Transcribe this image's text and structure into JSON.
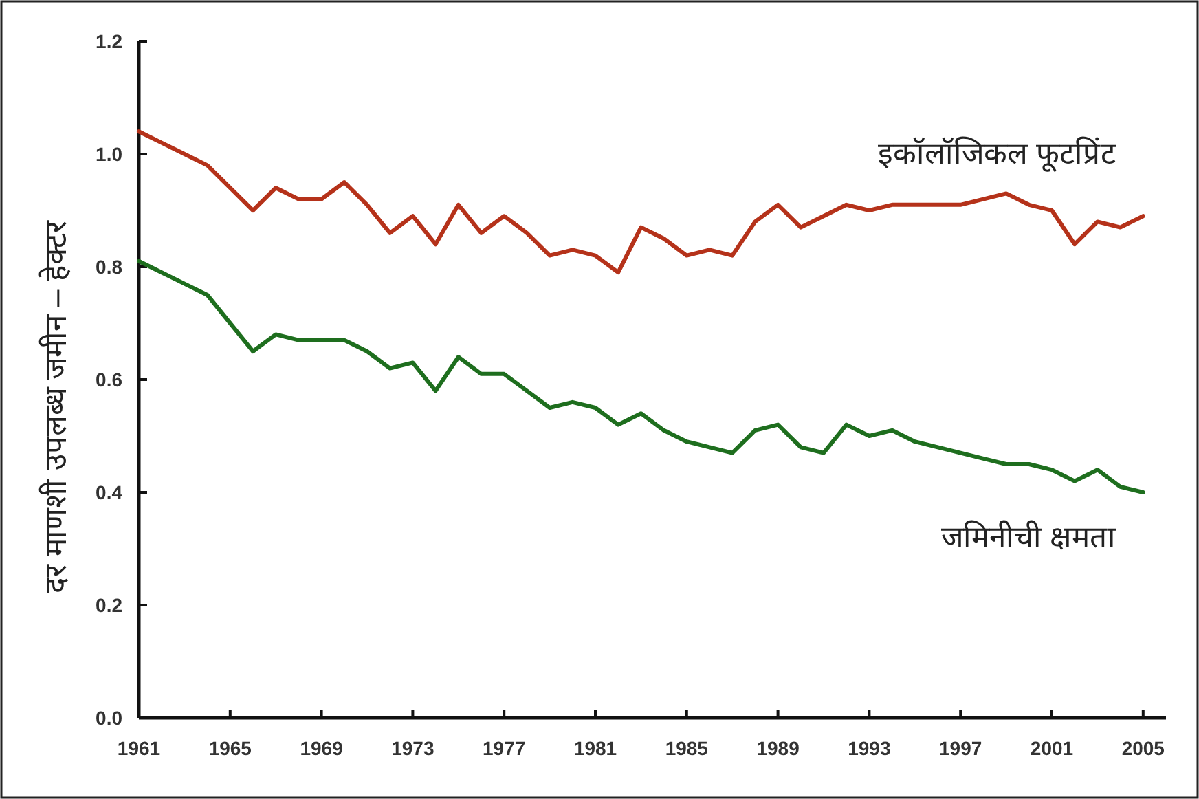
{
  "chart_data": {
    "type": "line",
    "ylabel": "दर माणशी उपलब्ध जमीन – हेक्टर",
    "x": [
      1961,
      1962,
      1963,
      1964,
      1965,
      1966,
      1967,
      1968,
      1969,
      1970,
      1971,
      1972,
      1973,
      1974,
      1975,
      1976,
      1977,
      1978,
      1979,
      1980,
      1981,
      1982,
      1983,
      1984,
      1985,
      1986,
      1987,
      1988,
      1989,
      1990,
      1991,
      1992,
      1993,
      1994,
      1995,
      1996,
      1997,
      1998,
      1999,
      2000,
      2001,
      2002,
      2003,
      2004,
      2005
    ],
    "series": [
      {
        "name": "इकॉलॉजिकल फूटप्रिंट",
        "color": "#b5321a",
        "values": [
          1.04,
          1.02,
          1.0,
          0.98,
          0.94,
          0.9,
          0.94,
          0.92,
          0.92,
          0.95,
          0.91,
          0.86,
          0.89,
          0.84,
          0.91,
          0.86,
          0.89,
          0.86,
          0.82,
          0.83,
          0.82,
          0.79,
          0.87,
          0.85,
          0.82,
          0.83,
          0.82,
          0.88,
          0.91,
          0.87,
          0.89,
          0.91,
          0.9,
          0.91,
          0.91,
          0.91,
          0.91,
          0.92,
          0.93,
          0.91,
          0.9,
          0.84,
          0.88,
          0.87,
          0.89
        ]
      },
      {
        "name": "जमिनीची क्षमता",
        "color": "#1e6e1e",
        "values": [
          0.81,
          0.79,
          0.77,
          0.75,
          0.7,
          0.65,
          0.68,
          0.67,
          0.67,
          0.67,
          0.65,
          0.62,
          0.63,
          0.58,
          0.64,
          0.61,
          0.61,
          0.58,
          0.55,
          0.56,
          0.55,
          0.52,
          0.54,
          0.51,
          0.49,
          0.48,
          0.47,
          0.51,
          0.52,
          0.48,
          0.47,
          0.52,
          0.5,
          0.51,
          0.49,
          0.48,
          0.47,
          0.46,
          0.45,
          0.45,
          0.44,
          0.42,
          0.44,
          0.41,
          0.4
        ]
      }
    ],
    "xlim": [
      1961,
      2006
    ],
    "xticks": [
      1961,
      1965,
      1969,
      1973,
      1977,
      1981,
      1985,
      1989,
      1993,
      1997,
      2001,
      2005
    ],
    "ylim": [
      0,
      1.2
    ],
    "yticks": [
      {
        "value": 0,
        "label": "0.0"
      },
      0.2,
      0.4,
      0.6,
      0.8,
      {
        "value": 1,
        "label": "1.0"
      },
      1.2
    ],
    "grid": false,
    "legend": false,
    "marker": "none",
    "line_style": "solid"
  }
}
